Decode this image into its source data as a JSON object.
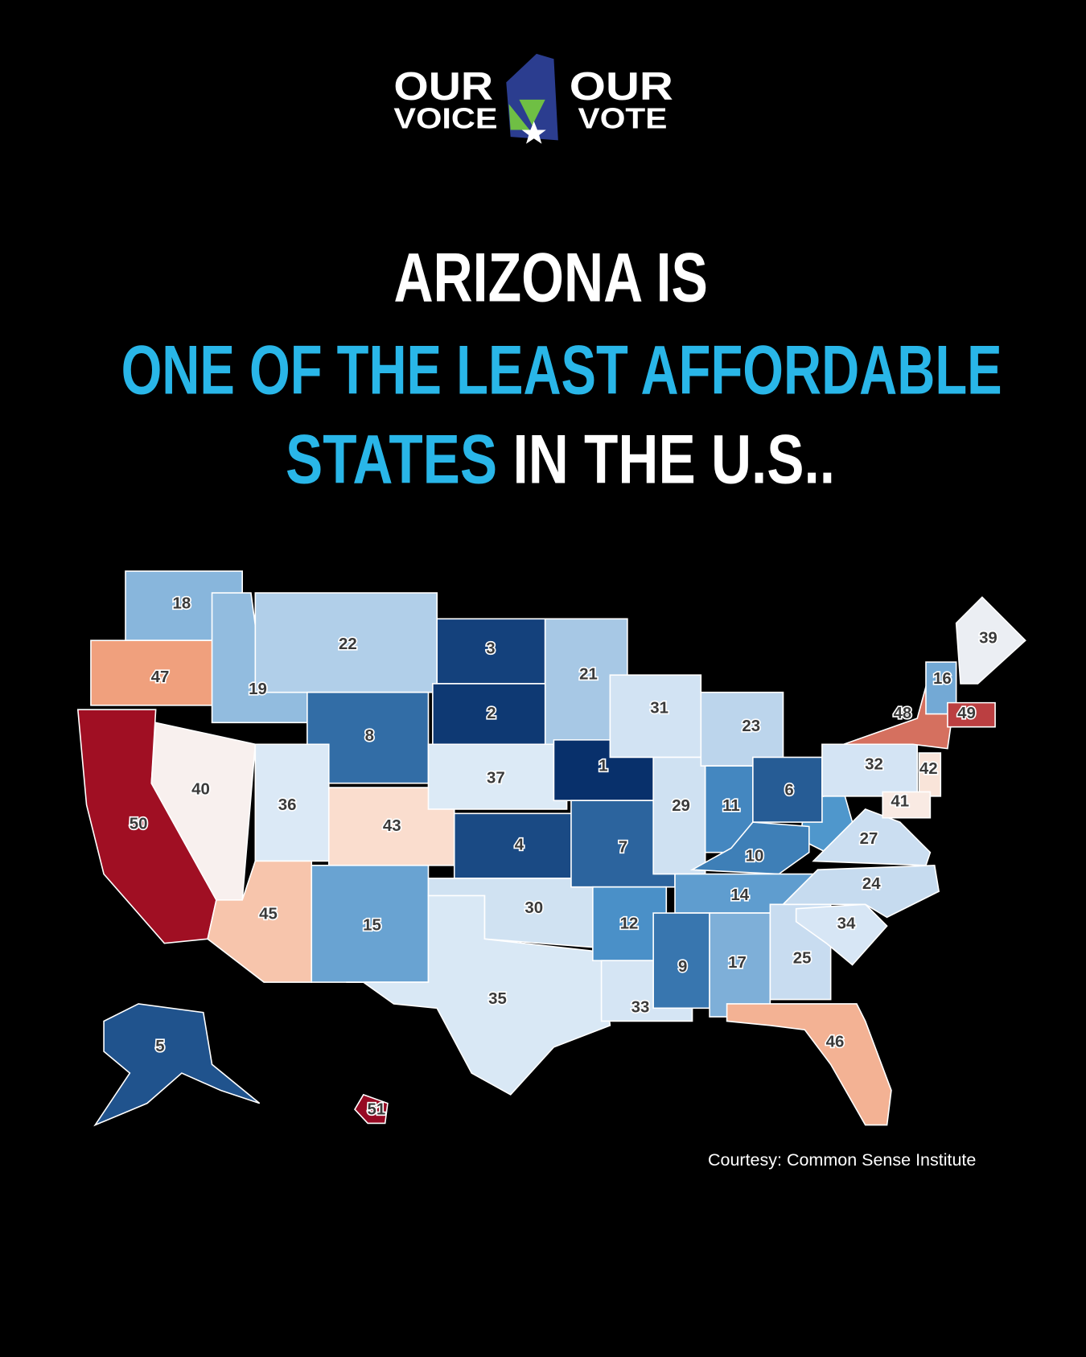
{
  "logo": {
    "left_top": "OUR",
    "left_bottom": "VOICE",
    "right_top": "OUR",
    "right_bottom": "VOTE"
  },
  "title": {
    "line1": "ARIZONA IS",
    "line2": "ONE OF THE LEAST AFFORDABLE",
    "line3_highlight": "STATES",
    "line3_rest": "IN THE U.S.."
  },
  "map": {
    "ranks": [
      18,
      47,
      50,
      19,
      40,
      22,
      8,
      36,
      43,
      45,
      15,
      3,
      2,
      37,
      4,
      30,
      35,
      21,
      1,
      7,
      12,
      33,
      31,
      29,
      23,
      11,
      6,
      10,
      14,
      9,
      17,
      25,
      46,
      34,
      24,
      27,
      32,
      48,
      39,
      16,
      49,
      42,
      41,
      5,
      51
    ]
  },
  "credit": "Courtesy: Common Sense Institute"
}
